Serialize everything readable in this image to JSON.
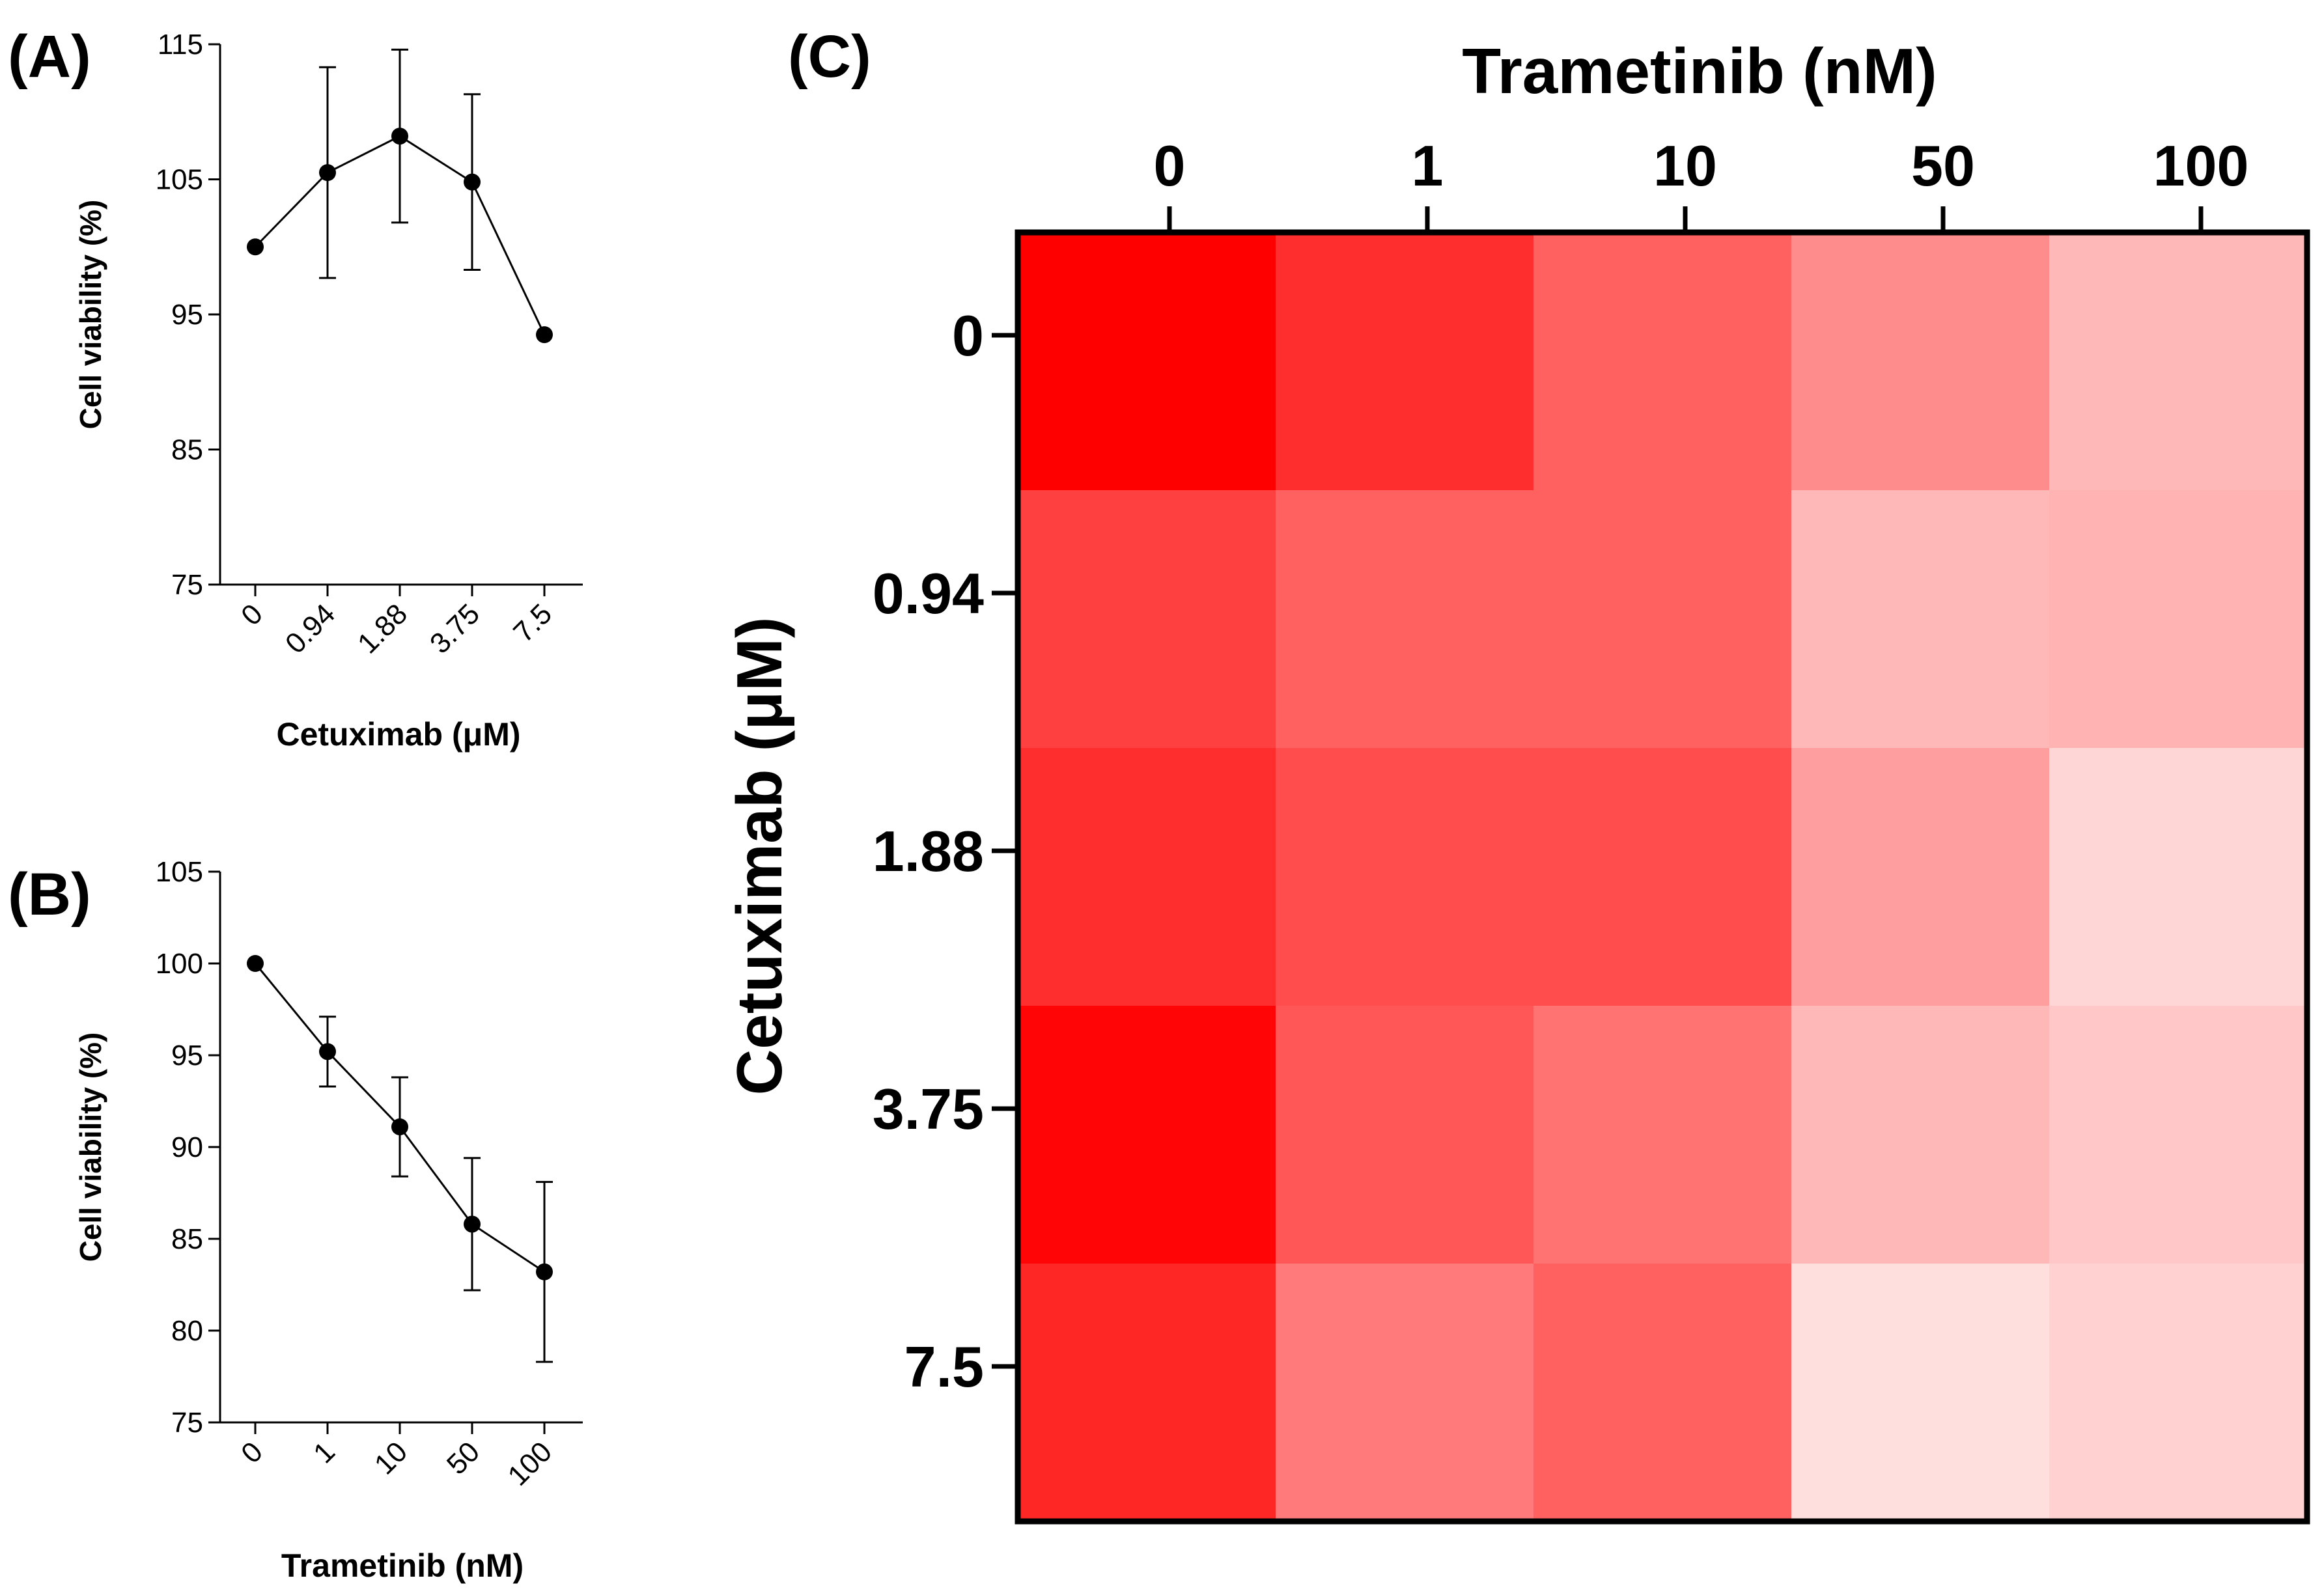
{
  "chart_data": [
    {
      "panel": "(A)",
      "type": "line",
      "xlabel": "Cetuximab (μM)",
      "ylabel": "Cell viability (%)",
      "categories": [
        "0",
        "0.94",
        "1.88",
        "3.75",
        "7.5"
      ],
      "values": [
        100,
        105.5,
        108.2,
        104.8,
        93.5
      ],
      "errors": [
        0,
        7.8,
        6.4,
        6.5,
        0
      ],
      "ylim": [
        75,
        115
      ],
      "yticks": [
        "75",
        "85",
        "95",
        "105",
        "115"
      ]
    },
    {
      "panel": "(B)",
      "type": "line",
      "xlabel": "Trametinib (nM)",
      "ylabel": "Cell viability (%)",
      "categories": [
        "0",
        "1",
        "10",
        "50",
        "100"
      ],
      "values": [
        100,
        95.2,
        91.1,
        85.8,
        83.2
      ],
      "errors": [
        0,
        1.9,
        2.7,
        3.6,
        4.9
      ],
      "ylim": [
        75,
        105
      ],
      "yticks": [
        "75",
        "80",
        "85",
        "90",
        "95",
        "100",
        "105"
      ]
    },
    {
      "panel": "(C)",
      "type": "heatmap",
      "xlabel": "Trametinib (nM)",
      "ylabel": "Cetuximab (μM)",
      "x": [
        "0",
        "1",
        "10",
        "50",
        "100"
      ],
      "y": [
        "0",
        "0.94",
        "1.88",
        "3.75",
        "7.5"
      ],
      "values": [
        [
          1.0,
          0.82,
          0.62,
          0.45,
          0.28
        ],
        [
          0.75,
          0.62,
          0.62,
          0.28,
          0.3
        ],
        [
          0.82,
          0.7,
          0.7,
          0.38,
          0.16
        ],
        [
          0.98,
          0.66,
          0.55,
          0.28,
          0.22
        ],
        [
          0.85,
          0.52,
          0.62,
          0.13,
          0.18
        ]
      ],
      "colormap": [
        "#ffffff",
        "#ff0000"
      ]
    }
  ]
}
